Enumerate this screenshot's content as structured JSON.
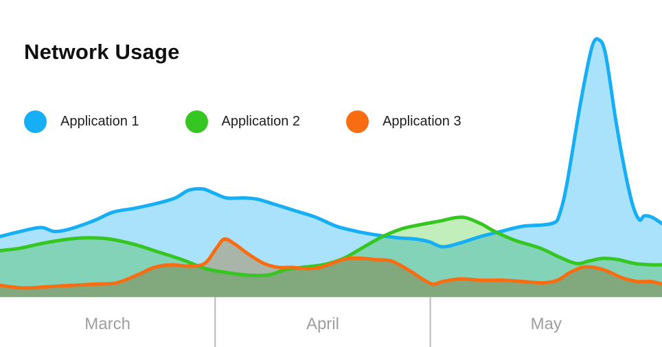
{
  "title": "Network Usage",
  "legend": {
    "items": [
      {
        "label": "Application 1",
        "color": "#16aef5"
      },
      {
        "label": "Application 2",
        "color": "#36c621"
      },
      {
        "label": "Application 3",
        "color": "#f96d12"
      }
    ]
  },
  "chart_data": {
    "type": "area",
    "title": "Network Usage",
    "legend_position": "top",
    "grid": false,
    "y_axis": {
      "visible": false,
      "range": [
        0,
        100
      ],
      "unit": "relative usage, unlabeled axis (100 = peak of Application 1 spike)"
    },
    "x_axis": {
      "months": [
        "March",
        "April",
        "May"
      ],
      "boundaries_pct": [
        0,
        32.5,
        65,
        100
      ],
      "tick_color": "#b8b8b8",
      "label_color": "#9e9e9e",
      "baseline_color": "#e3e3e3"
    },
    "series": [
      {
        "name": "Application 1",
        "color": "#16aef5",
        "fill_opacity": 0.36,
        "points": [
          [
            0,
            23.5
          ],
          [
            3.1,
            25.5
          ],
          [
            6.2,
            27
          ],
          [
            8.1,
            25.5
          ],
          [
            9.9,
            26
          ],
          [
            11.9,
            27.5
          ],
          [
            14.5,
            30
          ],
          [
            17.1,
            33
          ],
          [
            20.4,
            34.5
          ],
          [
            23.9,
            36.5
          ],
          [
            26.5,
            38.5
          ],
          [
            28.5,
            41.5
          ],
          [
            30.6,
            42
          ],
          [
            32.2,
            40.5
          ],
          [
            34.2,
            38.5
          ],
          [
            36.8,
            38.5
          ],
          [
            38.9,
            38
          ],
          [
            41.5,
            36
          ],
          [
            44.6,
            33.5
          ],
          [
            47.7,
            31
          ],
          [
            50.8,
            27.5
          ],
          [
            53.9,
            25.5
          ],
          [
            57.1,
            24
          ],
          [
            60.2,
            23
          ],
          [
            62.8,
            22.5
          ],
          [
            64.8,
            21.5
          ],
          [
            66.9,
            19.5
          ],
          [
            69.5,
            21
          ],
          [
            72.6,
            23.5
          ],
          [
            75.7,
            25.5
          ],
          [
            79,
            27.5
          ],
          [
            82,
            28
          ],
          [
            83.8,
            29
          ],
          [
            84.5,
            32
          ],
          [
            85.6,
            43.5
          ],
          [
            87.7,
            75.5
          ],
          [
            89.4,
            97
          ],
          [
            90.5,
            100
          ],
          [
            91.5,
            94
          ],
          [
            93,
            69
          ],
          [
            94.4,
            49
          ],
          [
            95.6,
            35.5
          ],
          [
            96.6,
            30
          ],
          [
            97.3,
            31.5
          ],
          [
            98.5,
            31
          ],
          [
            100,
            28.5
          ]
        ]
      },
      {
        "name": "Application 2",
        "color": "#36c621",
        "fill_opacity": 0.3,
        "points": [
          [
            0,
            18
          ],
          [
            3.1,
            19
          ],
          [
            6.7,
            21
          ],
          [
            10.4,
            22.5
          ],
          [
            13.5,
            23
          ],
          [
            16.6,
            22.5
          ],
          [
            20.2,
            20.5
          ],
          [
            23.9,
            17.5
          ],
          [
            27.5,
            14.5
          ],
          [
            31.1,
            11
          ],
          [
            34.2,
            9.5
          ],
          [
            37.3,
            8.5
          ],
          [
            40.5,
            8.5
          ],
          [
            43,
            10.5
          ],
          [
            45.6,
            11.5
          ],
          [
            48.8,
            12.5
          ],
          [
            51.9,
            15
          ],
          [
            55,
            19.5
          ],
          [
            57.8,
            23.5
          ],
          [
            60.7,
            26.5
          ],
          [
            63.3,
            28
          ],
          [
            66.4,
            29.5
          ],
          [
            69.8,
            31
          ],
          [
            72.6,
            28.5
          ],
          [
            74.7,
            25.5
          ],
          [
            77.8,
            22
          ],
          [
            81.6,
            19
          ],
          [
            84.5,
            15.5
          ],
          [
            87.1,
            13
          ],
          [
            89,
            14
          ],
          [
            91.1,
            15
          ],
          [
            93.4,
            14.5
          ],
          [
            95.9,
            13
          ],
          [
            98.5,
            12.5
          ],
          [
            100,
            12.5
          ]
        ]
      },
      {
        "name": "Application 3",
        "color": "#f96d12",
        "fill_opacity": 0.35,
        "points": [
          [
            0,
            4.5
          ],
          [
            3.6,
            3.5
          ],
          [
            7.3,
            4
          ],
          [
            10.9,
            4.5
          ],
          [
            14.5,
            5
          ],
          [
            17.6,
            5.5
          ],
          [
            20.7,
            8.5
          ],
          [
            23.3,
            11.5
          ],
          [
            25.9,
            12.5
          ],
          [
            28.5,
            12
          ],
          [
            30.9,
            13
          ],
          [
            32.7,
            19
          ],
          [
            33.9,
            22.5
          ],
          [
            35.5,
            20.5
          ],
          [
            37.6,
            16.5
          ],
          [
            39.9,
            13
          ],
          [
            42,
            11.5
          ],
          [
            44.1,
            11.5
          ],
          [
            46.4,
            11
          ],
          [
            48.4,
            11.5
          ],
          [
            50.6,
            13.5
          ],
          [
            52.6,
            15
          ],
          [
            54.8,
            15
          ],
          [
            56.8,
            14.5
          ],
          [
            59.1,
            14
          ],
          [
            61.7,
            10.5
          ],
          [
            63.8,
            7
          ],
          [
            65.4,
            5
          ],
          [
            66.9,
            6
          ],
          [
            69.5,
            7
          ],
          [
            72.6,
            6.5
          ],
          [
            75.9,
            6.5
          ],
          [
            79,
            6
          ],
          [
            82,
            5.5
          ],
          [
            84.2,
            6.5
          ],
          [
            86.1,
            9.5
          ],
          [
            87.9,
            11.5
          ],
          [
            89.7,
            11.5
          ],
          [
            91.8,
            10
          ],
          [
            93.9,
            7.5
          ],
          [
            96.3,
            6
          ],
          [
            98.3,
            6
          ],
          [
            100,
            5
          ]
        ]
      }
    ]
  }
}
